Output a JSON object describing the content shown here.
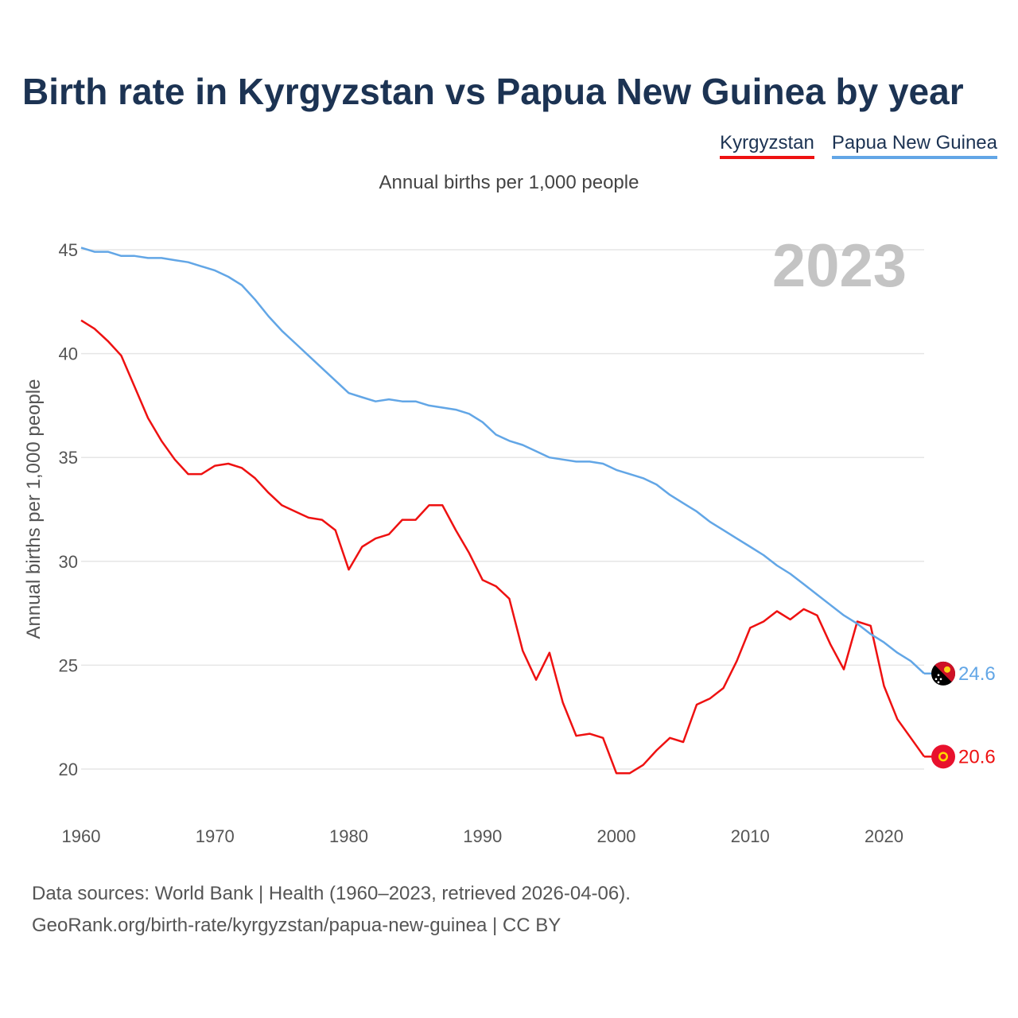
{
  "chart_data": {
    "type": "line",
    "title": "Birth rate in Kyrgyzstan vs Papua New Guinea by year",
    "subtitle": "Annual births per 1,000 people",
    "ylabel": "Annual births per 1,000 people",
    "xlabel": "",
    "current_year": "2023",
    "xlim": [
      1960,
      2023
    ],
    "ylim": [
      20,
      45
    ],
    "y_ticks": [
      45,
      40,
      35,
      30,
      25,
      20
    ],
    "x_ticks": [
      1960,
      1970,
      1980,
      1990,
      2000,
      2010,
      2020
    ],
    "grid": true,
    "legend_position": "top-right",
    "x": [
      1960,
      1961,
      1962,
      1963,
      1964,
      1965,
      1966,
      1967,
      1968,
      1969,
      1970,
      1971,
      1972,
      1973,
      1974,
      1975,
      1976,
      1977,
      1978,
      1979,
      1980,
      1981,
      1982,
      1983,
      1984,
      1985,
      1986,
      1987,
      1988,
      1989,
      1990,
      1991,
      1992,
      1993,
      1994,
      1995,
      1996,
      1997,
      1998,
      1999,
      2000,
      2001,
      2002,
      2003,
      2004,
      2005,
      2006,
      2007,
      2008,
      2009,
      2010,
      2011,
      2012,
      2013,
      2014,
      2015,
      2016,
      2017,
      2018,
      2019,
      2020,
      2021,
      2022,
      2023
    ],
    "series": [
      {
        "name": "Kyrgyzstan",
        "color": "#ee1111",
        "end_label": "20.6",
        "values": [
          41.6,
          41.2,
          40.6,
          39.9,
          38.4,
          36.9,
          35.8,
          34.9,
          34.2,
          34.2,
          34.6,
          34.7,
          34.5,
          34.0,
          33.3,
          32.7,
          32.4,
          32.1,
          32.0,
          31.5,
          29.6,
          30.7,
          31.1,
          31.3,
          32.0,
          32.0,
          32.7,
          32.7,
          31.5,
          30.4,
          29.1,
          28.8,
          28.2,
          25.7,
          24.3,
          25.6,
          23.2,
          21.6,
          21.7,
          21.5,
          19.8,
          19.8,
          20.2,
          20.9,
          21.5,
          21.3,
          23.1,
          23.4,
          23.9,
          25.2,
          26.8,
          27.1,
          27.6,
          27.2,
          27.7,
          27.4,
          26.0,
          24.8,
          27.1,
          26.9,
          24.0,
          22.4,
          21.5,
          20.6
        ]
      },
      {
        "name": "Papua New Guinea",
        "color": "#62a6e6",
        "end_label": "24.6",
        "values": [
          45.1,
          44.9,
          44.9,
          44.7,
          44.7,
          44.6,
          44.6,
          44.5,
          44.4,
          44.2,
          44.0,
          43.7,
          43.3,
          42.6,
          41.8,
          41.1,
          40.5,
          39.9,
          39.3,
          38.7,
          38.1,
          37.9,
          37.7,
          37.8,
          37.7,
          37.7,
          37.5,
          37.4,
          37.3,
          37.1,
          36.7,
          36.1,
          35.8,
          35.6,
          35.3,
          35.0,
          34.9,
          34.8,
          34.8,
          34.7,
          34.4,
          34.2,
          34.0,
          33.7,
          33.2,
          32.8,
          32.4,
          31.9,
          31.5,
          31.1,
          30.7,
          30.3,
          29.8,
          29.4,
          28.9,
          28.4,
          27.9,
          27.4,
          27.0,
          26.5,
          26.1,
          25.6,
          25.2,
          24.6
        ]
      }
    ]
  },
  "footer": {
    "line1": "Data sources: World Bank | Health (1960–2023, retrieved 2026-04-06).",
    "line2": "GeoRank.org/birth-rate/kyrgyzstan/papua-new-guinea | CC BY"
  }
}
